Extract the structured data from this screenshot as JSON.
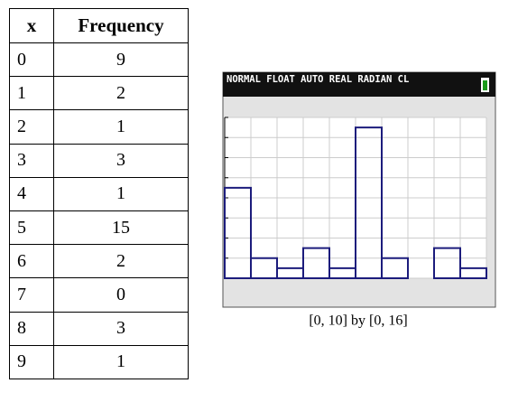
{
  "table": {
    "header": [
      "x",
      "Frequency"
    ],
    "rows": [
      [
        0,
        9
      ],
      [
        1,
        2
      ],
      [
        2,
        1
      ],
      [
        3,
        3
      ],
      [
        4,
        1
      ],
      [
        5,
        15
      ],
      [
        6,
        2
      ],
      [
        7,
        0
      ],
      [
        8,
        3
      ],
      [
        9,
        1
      ]
    ]
  },
  "screen": {
    "status": "NORMAL FLOAT AUTO REAL RADIAN CL",
    "xlim": [
      0,
      10
    ],
    "ylim": [
      0,
      16
    ],
    "xticks": [
      0,
      1,
      2,
      3,
      4,
      5,
      6,
      7,
      8,
      9,
      10
    ],
    "yticks": [
      0,
      2,
      4,
      6,
      8,
      10,
      12,
      14,
      16
    ],
    "bar_color": "#1c1c7c",
    "caption": "[0, 10] by [0, 16]"
  }
}
